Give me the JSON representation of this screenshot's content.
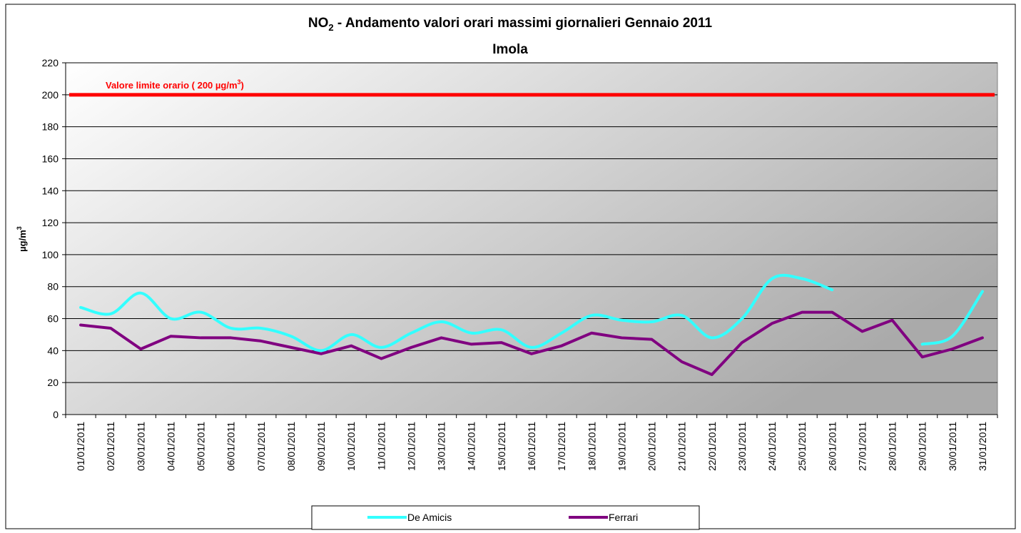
{
  "chart_data": {
    "type": "line",
    "title": {
      "text_1": "NO",
      "subscript": "2",
      "text_2": " - Andamento valori orari massimi giornalieri Gennaio 2011"
    },
    "subtitle": "Imola",
    "y_label": {
      "text": "µg/m",
      "superscript": "3"
    },
    "limit": {
      "value": 200,
      "label_1": "Valore limite orario ( 200 µg/m",
      "superscript": "3",
      "label_2": ")",
      "color": "#ff0000"
    },
    "categories": [
      "01/01/2011",
      "02/01/2011",
      "03/01/2011",
      "04/01/2011",
      "05/01/2011",
      "06/01/2011",
      "07/01/2011",
      "08/01/2011",
      "09/01/2011",
      "10/01/2011",
      "11/01/2011",
      "12/01/2011",
      "13/01/2011",
      "14/01/2011",
      "15/01/2011",
      "16/01/2011",
      "17/01/2011",
      "18/01/2011",
      "19/01/2011",
      "20/01/2011",
      "21/01/2011",
      "22/01/2011",
      "23/01/2011",
      "24/01/2011",
      "25/01/2011",
      "26/01/2011",
      "27/01/2011",
      "28/01/2011",
      "29/01/2011",
      "30/01/2011",
      "31/01/2011"
    ],
    "series": [
      {
        "name": "De Amicis",
        "color": "#33ffff",
        "smooth": true,
        "values": [
          67,
          63,
          76,
          60,
          64,
          54,
          54,
          49,
          40,
          50,
          42,
          51,
          58,
          51,
          53,
          42,
          51,
          62,
          59,
          58,
          62,
          48,
          60,
          85,
          85,
          78,
          null,
          null,
          44,
          49,
          77
        ]
      },
      {
        "name": "Ferrari",
        "color": "#800080",
        "smooth": false,
        "values": [
          56,
          54,
          41,
          49,
          48,
          48,
          46,
          42,
          38,
          43,
          35,
          42,
          48,
          44,
          45,
          38,
          43,
          51,
          48,
          47,
          33,
          25,
          45,
          57,
          64,
          64,
          52,
          59,
          36,
          41,
          48
        ]
      }
    ],
    "ylim": [
      0,
      220
    ],
    "yticks": [
      0,
      20,
      40,
      60,
      80,
      100,
      120,
      140,
      160,
      180,
      200,
      220
    ],
    "grid": true,
    "legend": "bottom"
  }
}
